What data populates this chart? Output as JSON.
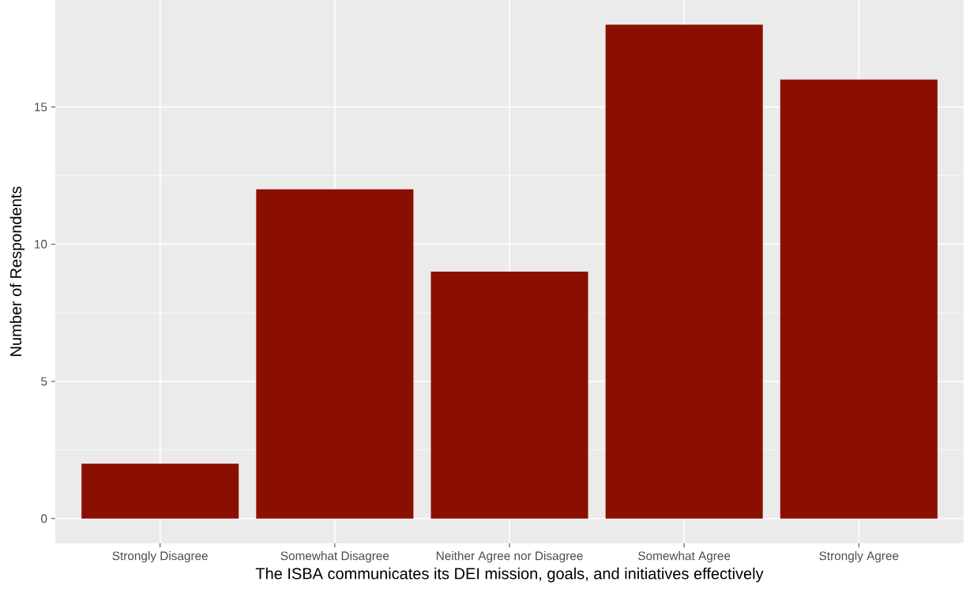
{
  "chart_data": {
    "type": "bar",
    "xlabel": "The ISBA communicates its DEI mission, goals, and initiatives effectively",
    "ylabel": "Number of Respondents",
    "categories": [
      "Strongly Disagree",
      "Somewhat Disagree",
      "Neither Agree nor Disagree",
      "Somewhat Agree",
      "Strongly Agree"
    ],
    "values": [
      2,
      12,
      9,
      18,
      16
    ],
    "color": "#8b0f00",
    "ylim": [
      -0.9,
      18.9
    ],
    "yticks": [
      0,
      5,
      10,
      15
    ],
    "grid": true
  }
}
